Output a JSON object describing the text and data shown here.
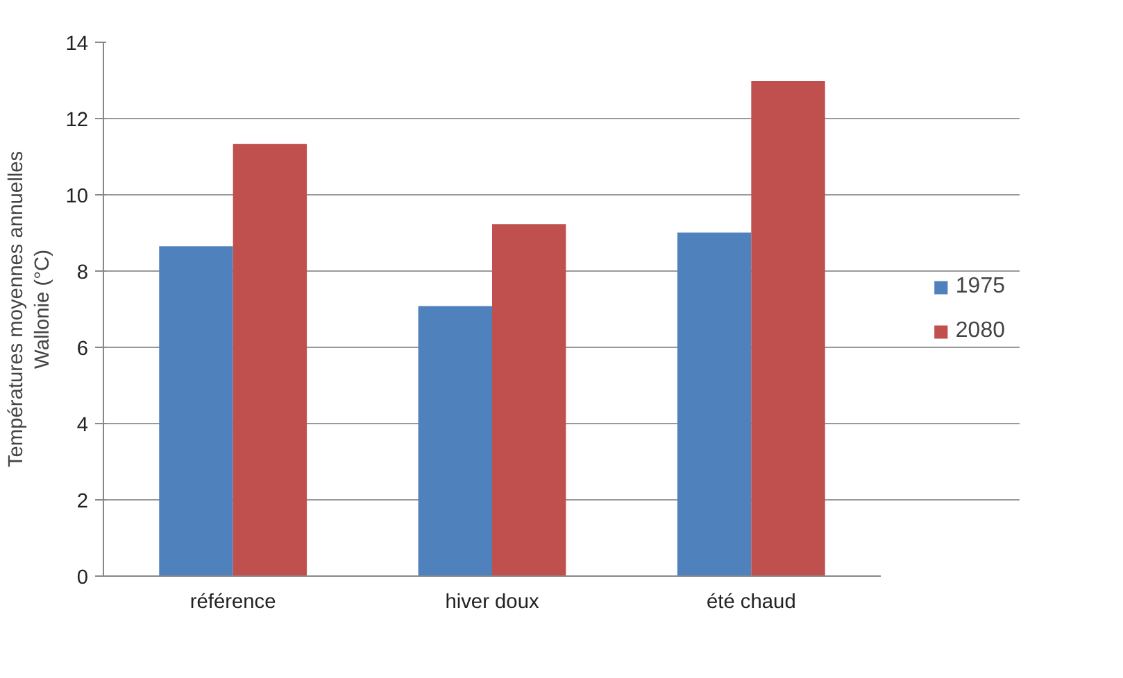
{
  "chart_data": {
    "type": "bar",
    "ylabel": "Températures moyennes annuelles\nWallonie (°C)",
    "categories": [
      "référence",
      "hiver doux",
      "été chaud"
    ],
    "series": [
      {
        "name": "1975",
        "color": "#4f81bd",
        "values": [
          8.65,
          7.08,
          9.01
        ]
      },
      {
        "name": "2080",
        "color": "#c0504d",
        "values": [
          11.33,
          9.23,
          12.98
        ]
      }
    ],
    "ylim": [
      0,
      14
    ],
    "yticks": [
      0,
      2,
      4,
      6,
      8,
      10,
      12,
      14
    ],
    "grid": "y",
    "legend": "right"
  }
}
